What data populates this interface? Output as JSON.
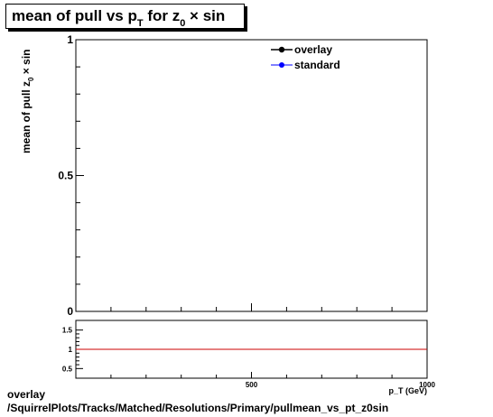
{
  "title": {
    "main": "mean of pull vs p",
    "sub_t": "T",
    "mid": " for z",
    "sub_0": "0",
    "tail": " × sin"
  },
  "ylabel": {
    "text": "mean of pull z",
    "sub_0": "0",
    "tail": " × sin"
  },
  "xlabel": "p_T (GeV)",
  "legend": [
    {
      "label": "overlay",
      "color": "#000000"
    },
    {
      "label": "standard",
      "color": "#0000ff"
    }
  ],
  "chart_data": [
    {
      "type": "line",
      "title": "mean of pull vs p_T for z_0 × sin",
      "ylabel": "mean of pull z_0 × sin",
      "xlim": [
        0,
        1000
      ],
      "ylim": [
        0,
        1
      ],
      "y_ticks": [
        "0",
        "0.5",
        "1"
      ],
      "series": [
        {
          "name": "overlay",
          "x": [],
          "y": []
        },
        {
          "name": "standard",
          "x": [],
          "y": []
        }
      ],
      "legend_position": "top-right"
    },
    {
      "type": "line",
      "xlim": [
        0,
        1000
      ],
      "ylim": [
        0.25,
        1.75
      ],
      "x_ticks": [
        "500",
        "1000"
      ],
      "y_ticks": [
        "0.5",
        "1",
        "1.5"
      ],
      "reference_line": {
        "y": 1,
        "color": "#cc0000"
      }
    }
  ],
  "footer": {
    "line1": "overlay",
    "line2": "/SquirrelPlots/Tracks/Matched/Resolutions/Primary/pullmean_vs_pt_z0sin"
  }
}
